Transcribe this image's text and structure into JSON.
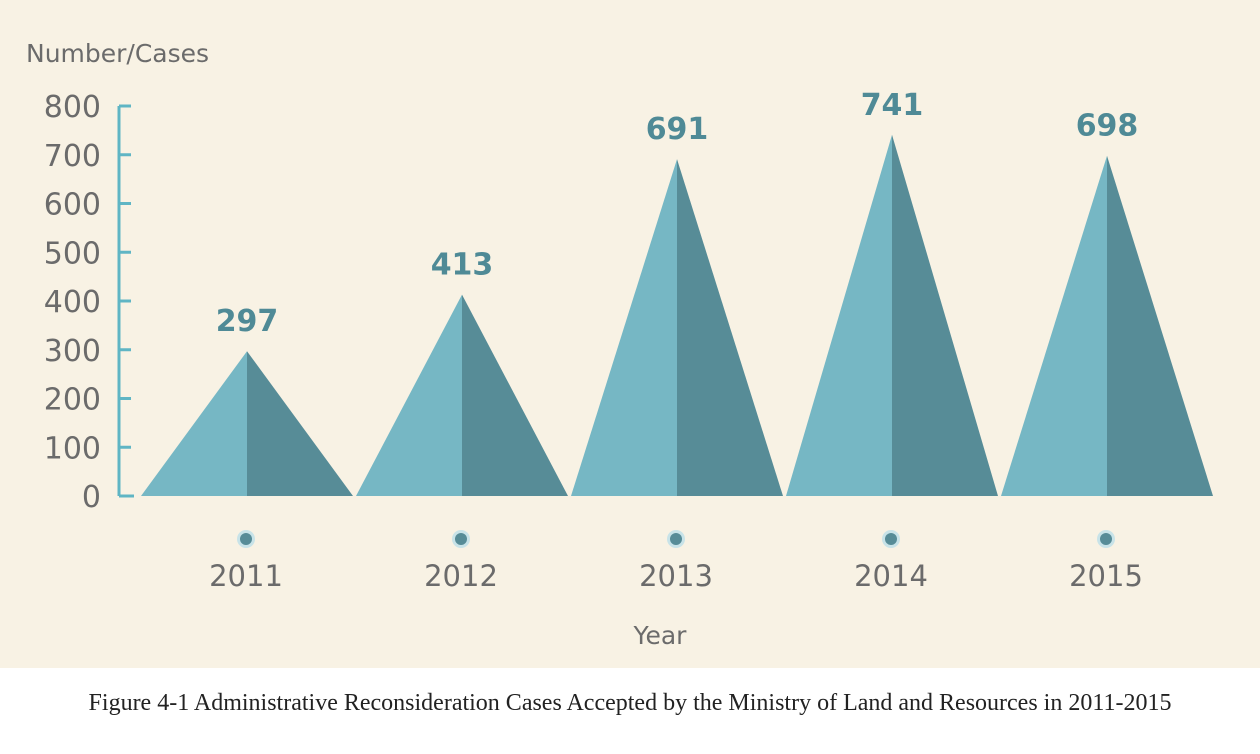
{
  "chart_data": {
    "type": "bar",
    "shape": "triangle",
    "categories": [
      "2011",
      "2012",
      "2013",
      "2014",
      "2015"
    ],
    "values": [
      297,
      413,
      691,
      741,
      698
    ],
    "value_labels": [
      "297",
      "413",
      "691",
      "741",
      "698"
    ],
    "ylabel": "Number/Cases",
    "xlabel": "Year",
    "ylim": [
      0,
      800
    ],
    "yticks": [
      "0",
      "100",
      "200",
      "300",
      "400",
      "500",
      "600",
      "700",
      "800"
    ],
    "grid": false,
    "colors": {
      "light": "#76b7c4",
      "dark": "#578c97",
      "axis": "#5fb5c4",
      "background": "#f8f2e4"
    }
  },
  "caption": "Figure 4-1 Administrative Reconsideration Cases Accepted by the Ministry of Land and Resources in 2011-2015"
}
